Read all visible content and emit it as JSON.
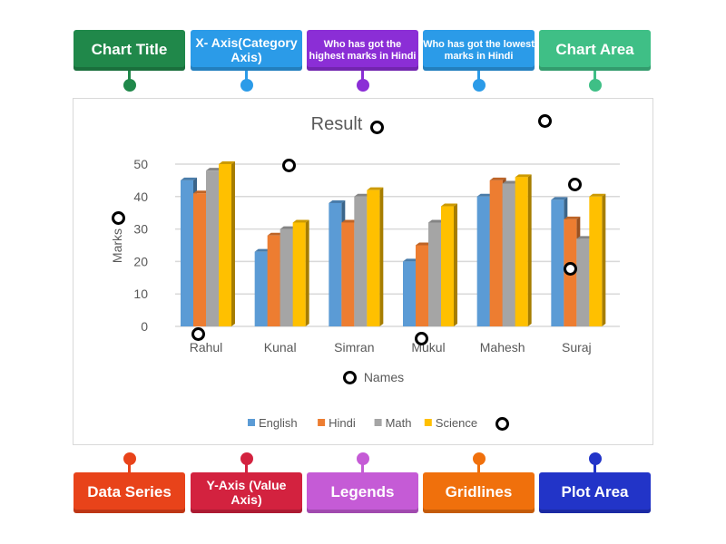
{
  "top_labels": [
    {
      "text": "Chart Title",
      "color": "#20884a"
    },
    {
      "text": "X- Axis(Category Axis)",
      "color": "#2b9be8"
    },
    {
      "text": "Who has got the highest marks in Hindi",
      "color": "#8b2ed6"
    },
    {
      "text": "Who has got the lowest marks in Hindi",
      "color": "#2b9be8"
    },
    {
      "text": "Chart Area",
      "color": "#3fbf86"
    }
  ],
  "bottom_labels": [
    {
      "text": "Data Series",
      "color": "#e8431a"
    },
    {
      "text": "Y-Axis (Value Axis)",
      "color": "#d3223f"
    },
    {
      "text": "Legends",
      "color": "#c55bd6"
    },
    {
      "text": "Gridlines",
      "color": "#f0700c"
    },
    {
      "text": "Plot Area",
      "color": "#2234c8"
    }
  ],
  "chart_data": {
    "type": "bar",
    "title": "Result",
    "xlabel": "Names",
    "ylabel": "Marks",
    "ylim": [
      0,
      50
    ],
    "yticks": [
      "0",
      "10",
      "20",
      "30",
      "40",
      "50"
    ],
    "grid": true,
    "legend_position": "bottom",
    "categories": [
      "Rahul",
      "Kunal",
      "Simran",
      "Mukul",
      "Mahesh",
      "Suraj"
    ],
    "series": [
      {
        "name": "English",
        "color": "#5b9bd5",
        "values": [
          45,
          23,
          38,
          20,
          40,
          39
        ]
      },
      {
        "name": "Hindi",
        "color": "#ed7d31",
        "values": [
          41,
          28,
          32,
          25,
          45,
          33
        ]
      },
      {
        "name": "Math",
        "color": "#a5a5a5",
        "values": [
          48,
          30,
          40,
          32,
          44,
          27
        ]
      },
      {
        "name": "Science",
        "color": "#ffc000",
        "values": [
          50,
          32,
          42,
          37,
          46,
          40
        ]
      }
    ]
  }
}
